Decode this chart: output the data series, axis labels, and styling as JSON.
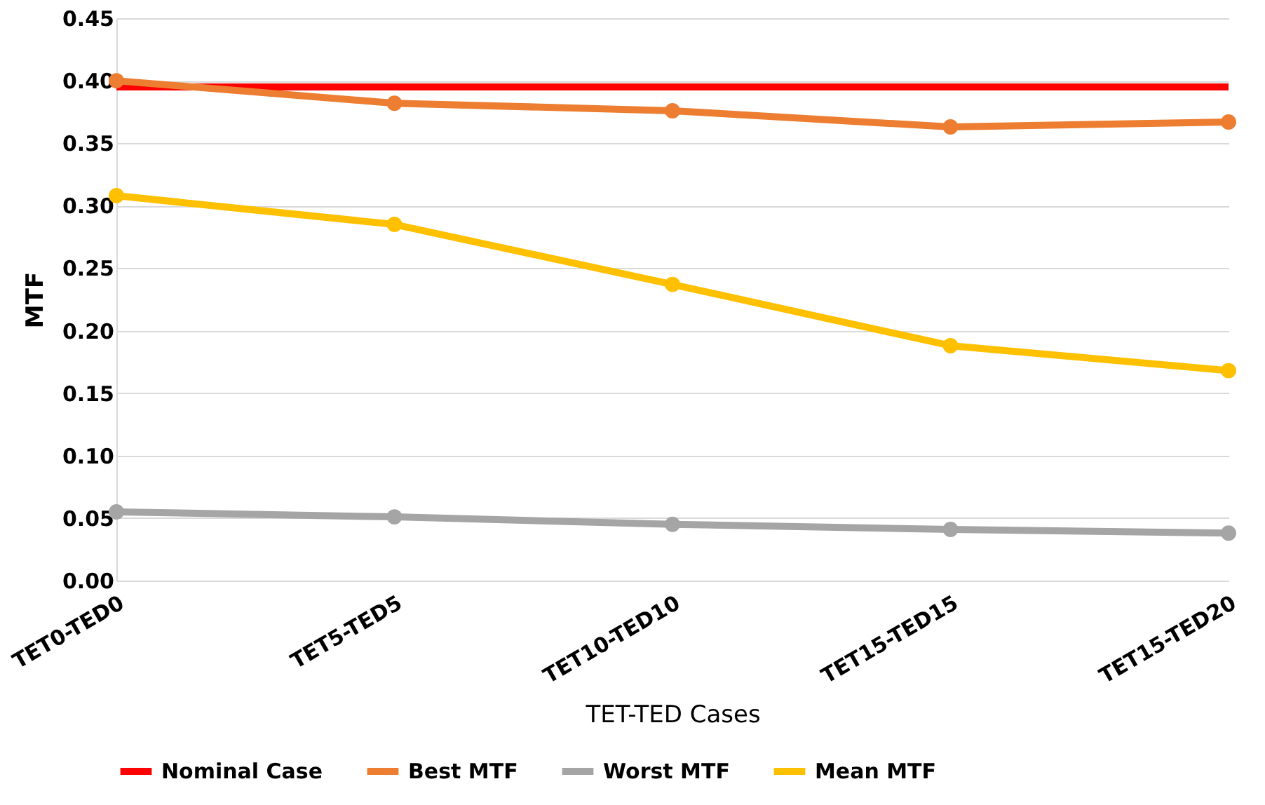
{
  "chart_data": {
    "type": "line",
    "xlabel": "TET-TED Cases",
    "ylabel": "MTF",
    "categories": [
      "TET0-TED0",
      "TET5-TED5",
      "TET10-TED10",
      "TET15-TED15",
      "TET15-TED20"
    ],
    "series": [
      {
        "name": "Nominal Case",
        "color": "#ff0000",
        "values": [
          0.395,
          0.395,
          0.395,
          0.395,
          0.395
        ],
        "marker": "none"
      },
      {
        "name": "Best MTF",
        "color": "#ed7d31",
        "values": [
          0.4,
          0.382,
          0.376,
          0.363,
          0.367
        ],
        "marker": "circle"
      },
      {
        "name": "Worst MTF",
        "color": "#a5a5a5",
        "values": [
          0.055,
          0.051,
          0.045,
          0.041,
          0.038
        ],
        "marker": "circle"
      },
      {
        "name": "Mean MTF",
        "color": "#ffc000",
        "values": [
          0.308,
          0.285,
          0.237,
          0.188,
          0.168
        ],
        "marker": "circle"
      }
    ],
    "ylim": [
      0,
      0.45
    ],
    "yticks": [
      {
        "value": 0,
        "label": "0.00"
      },
      {
        "value": 0.05,
        "label": "0.05"
      },
      {
        "value": 0.1,
        "label": "0.10"
      },
      {
        "value": 0.15,
        "label": "0.15"
      },
      {
        "value": 0.2,
        "label": "0.20"
      },
      {
        "value": 0.25,
        "label": "0.25"
      },
      {
        "value": 0.3,
        "label": "0.30"
      },
      {
        "value": 0.35,
        "label": "0.35"
      },
      {
        "value": 0.4,
        "label": "0.40"
      },
      {
        "value": 0.45,
        "label": "0.45"
      }
    ],
    "grid": "y",
    "legend": "bottom",
    "line_style": "solid"
  }
}
